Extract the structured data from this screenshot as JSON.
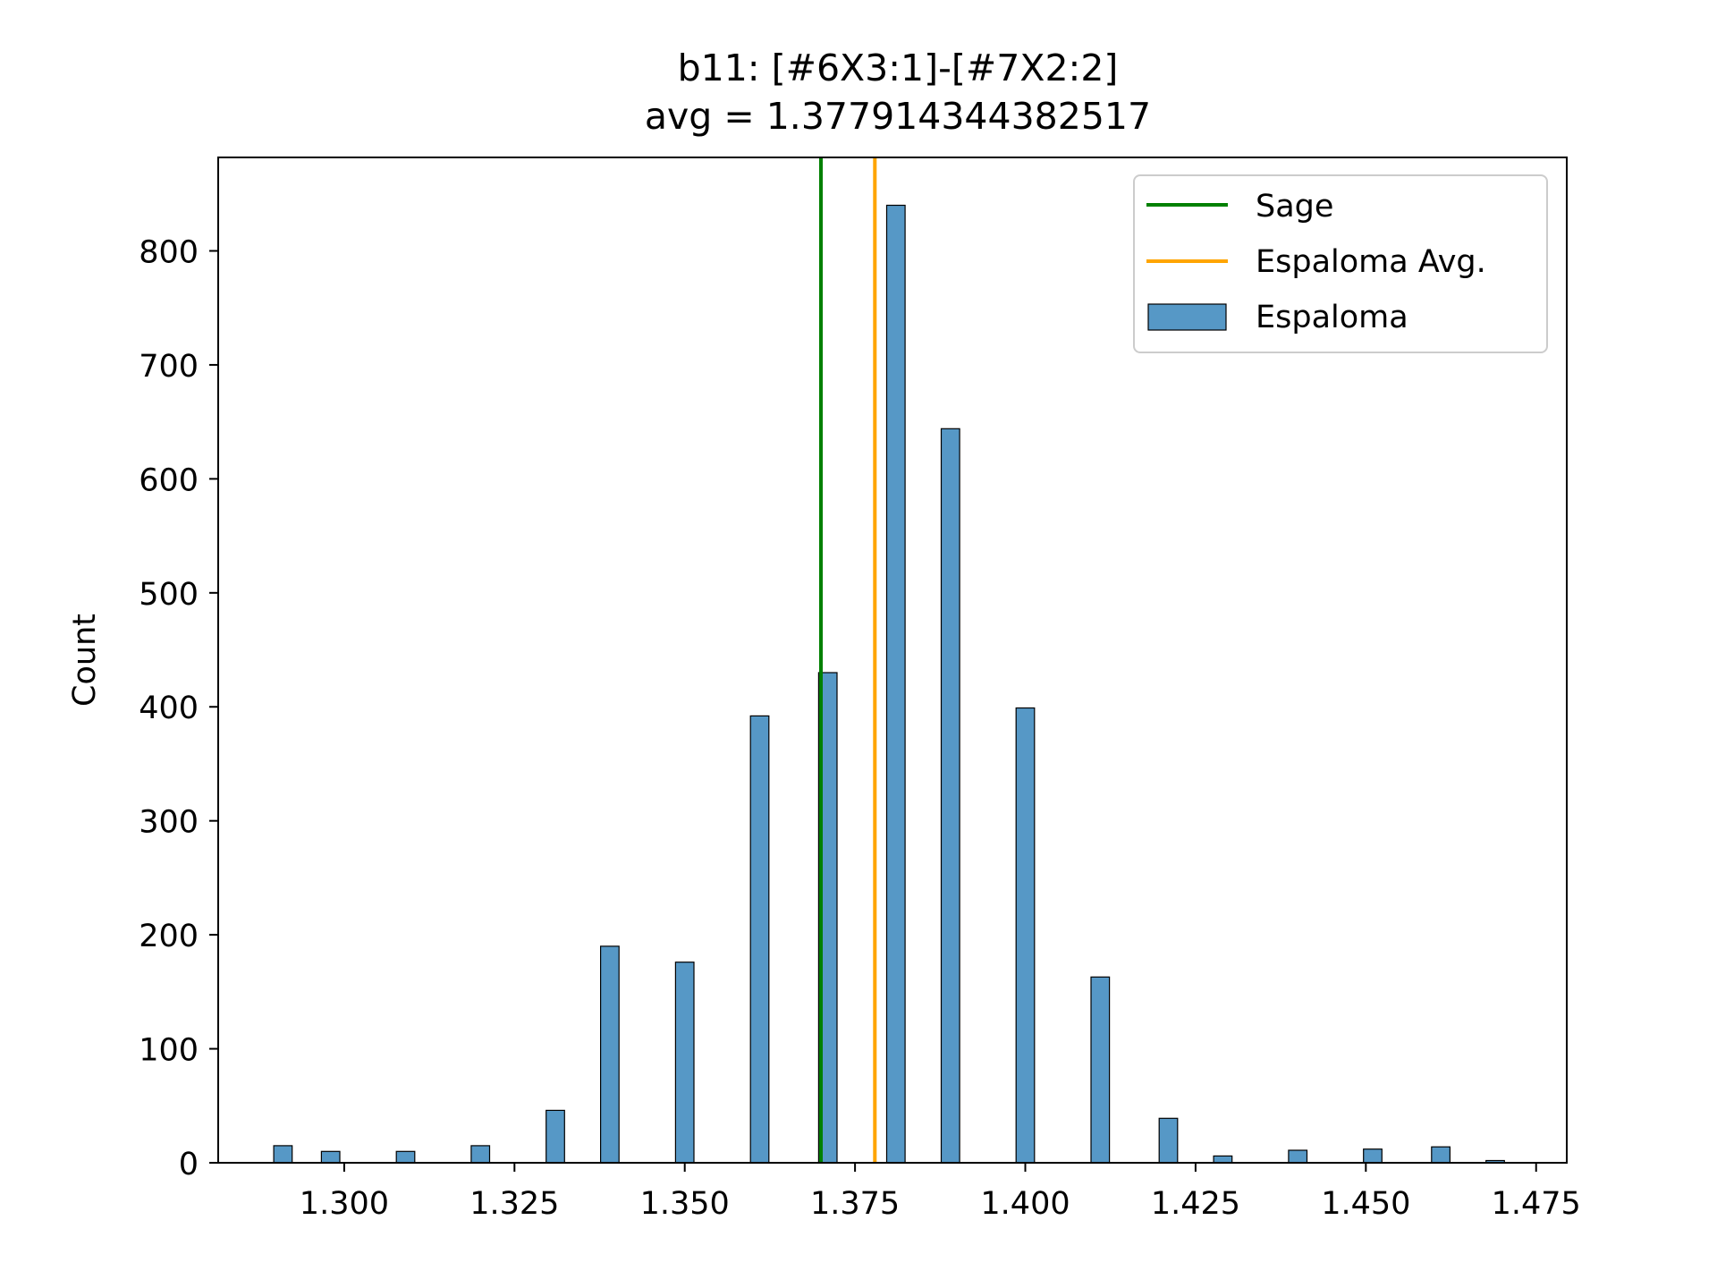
{
  "chart_data": {
    "type": "bar",
    "title": "b11: [#6X3:1]-[#7X2:2]",
    "subtitle": "avg = 1.377914344382517",
    "xlabel": "",
    "ylabel": "Count",
    "xlim": [
      1.2815,
      1.4795
    ],
    "ylim": [
      0,
      882
    ],
    "xticks": [
      1.3,
      1.325,
      1.35,
      1.375,
      1.4,
      1.425,
      1.45,
      1.475
    ],
    "xtick_labels": [
      "1.300",
      "1.325",
      "1.350",
      "1.375",
      "1.400",
      "1.425",
      "1.450",
      "1.475"
    ],
    "yticks": [
      0,
      100,
      200,
      300,
      400,
      500,
      600,
      700,
      800
    ],
    "ytick_labels": [
      "0",
      "100",
      "200",
      "300",
      "400",
      "500",
      "600",
      "700",
      "800"
    ],
    "bin_width": 0.0027,
    "legend": {
      "placement": "top-right",
      "entries": [
        {
          "label": "Sage",
          "kind": "line",
          "color": "#008000"
        },
        {
          "label": "Espaloma Avg.",
          "kind": "line",
          "color": "#ffa500"
        },
        {
          "label": "Espaloma",
          "kind": "patch",
          "color": "#5698c6"
        }
      ]
    },
    "vlines": [
      {
        "name": "Sage",
        "x": 1.37,
        "color": "#008000"
      },
      {
        "name": "Espaloma Avg.",
        "x": 1.377914344382517,
        "color": "#ffa500"
      }
    ],
    "series": [
      {
        "name": "Espaloma",
        "color": "#5698c6",
        "x": [
          1.291,
          1.298,
          1.309,
          1.32,
          1.331,
          1.339,
          1.35,
          1.361,
          1.371,
          1.381,
          1.389,
          1.4,
          1.411,
          1.421,
          1.429,
          1.44,
          1.451,
          1.461,
          1.469
        ],
        "values": [
          15,
          10,
          10,
          15,
          46,
          190,
          176,
          392,
          430,
          840,
          644,
          399,
          163,
          39,
          6,
          11,
          12,
          14,
          2
        ]
      }
    ]
  }
}
